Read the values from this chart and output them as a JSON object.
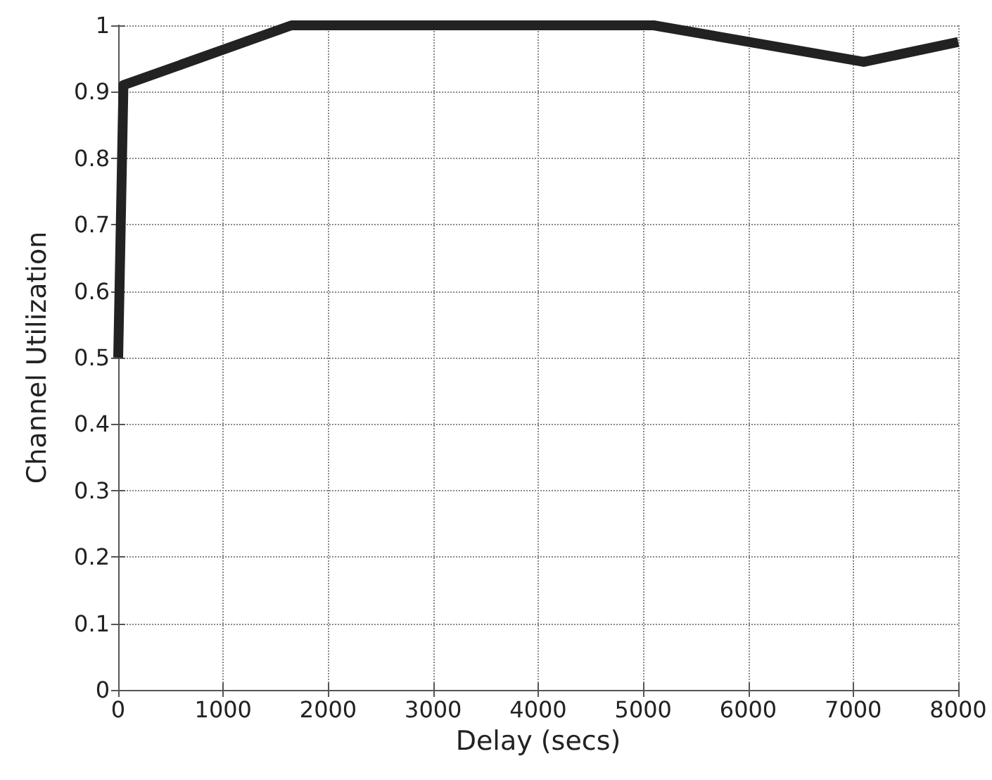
{
  "chart_data": {
    "type": "line",
    "xlabel": "Delay (secs)",
    "ylabel": "Channel Utilization",
    "x": [
      0,
      50,
      1650,
      5100,
      7100,
      8000
    ],
    "series": [
      {
        "color": "#222222",
        "values": [
          0.5,
          0.91,
          1,
          1,
          0.945,
          0.975
        ]
      }
    ],
    "xlim": [
      0,
      8000
    ],
    "xticks": [
      0,
      1000,
      2000,
      3000,
      4000,
      5000,
      6000,
      7000,
      8000
    ],
    "ylim": [
      0,
      1
    ],
    "yticks": [
      0,
      0.1,
      0.2,
      0.3,
      0.4,
      0.5,
      0.6,
      0.7,
      0.8,
      0.9,
      1
    ],
    "grid": true,
    "marker": "none",
    "line_style": "solid"
  }
}
